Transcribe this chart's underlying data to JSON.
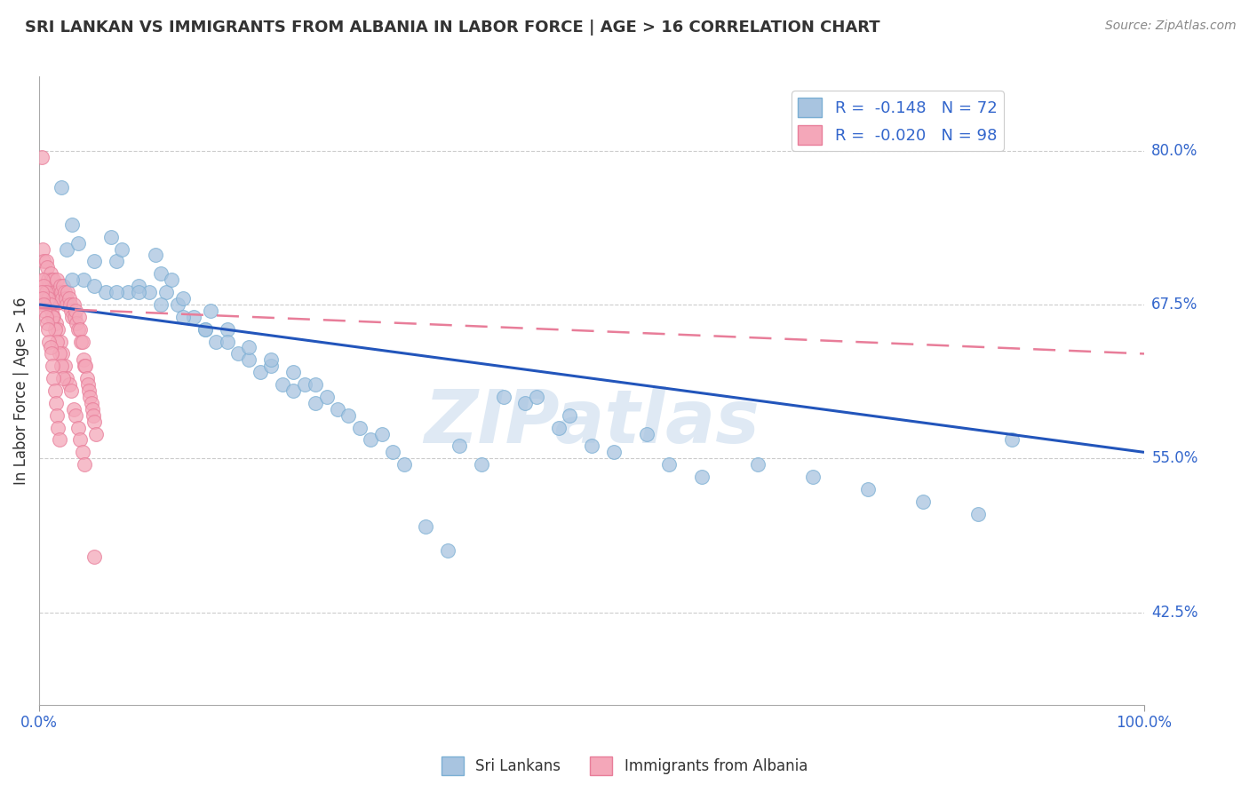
{
  "title": "SRI LANKAN VS IMMIGRANTS FROM ALBANIA IN LABOR FORCE | AGE > 16 CORRELATION CHART",
  "source": "Source: ZipAtlas.com",
  "xlabel_bottom_left": "0.0%",
  "xlabel_bottom_right": "100.0%",
  "ylabel": "In Labor Force | Age > 16",
  "ytick_labels": [
    "42.5%",
    "55.0%",
    "67.5%",
    "80.0%"
  ],
  "ytick_values": [
    0.425,
    0.55,
    0.675,
    0.8
  ],
  "xlim": [
    0.0,
    1.0
  ],
  "ylim": [
    0.35,
    0.86
  ],
  "sri_lankan_R": -0.148,
  "sri_lankan_N": 72,
  "albania_R": -0.02,
  "albania_N": 98,
  "sri_lankan_color": "#a8c4e0",
  "albania_color": "#f4a7b9",
  "sri_lankan_edge": "#7bafd4",
  "albania_edge": "#e87d99",
  "trend_blue_color": "#2255bb",
  "trend_pink_color": "#e87d99",
  "watermark": "ZIPatlas",
  "watermark_color": "#c8d8e8",
  "legend_box_blue": "#a8c4e0",
  "legend_box_pink": "#f4a7b9",
  "trend_blue_x0": 0.0,
  "trend_blue_y0": 0.675,
  "trend_blue_x1": 1.0,
  "trend_blue_y1": 0.555,
  "trend_pink_x0": 0.0,
  "trend_pink_y0": 0.672,
  "trend_pink_x1": 1.0,
  "trend_pink_y1": 0.635,
  "sri_lankans_x": [
    0.02,
    0.025,
    0.03,
    0.035,
    0.04,
    0.05,
    0.06,
    0.065,
    0.07,
    0.075,
    0.08,
    0.09,
    0.1,
    0.105,
    0.11,
    0.115,
    0.12,
    0.125,
    0.13,
    0.14,
    0.15,
    0.155,
    0.16,
    0.17,
    0.18,
    0.19,
    0.2,
    0.21,
    0.22,
    0.23,
    0.24,
    0.25,
    0.26,
    0.27,
    0.28,
    0.29,
    0.3,
    0.31,
    0.32,
    0.33,
    0.35,
    0.37,
    0.38,
    0.4,
    0.42,
    0.44,
    0.45,
    0.47,
    0.48,
    0.5,
    0.52,
    0.55,
    0.57,
    0.6,
    0.65,
    0.7,
    0.75,
    0.8,
    0.85,
    0.88,
    0.03,
    0.05,
    0.07,
    0.09,
    0.11,
    0.13,
    0.15,
    0.17,
    0.19,
    0.21,
    0.23,
    0.25
  ],
  "sri_lankans_y": [
    0.77,
    0.72,
    0.74,
    0.725,
    0.695,
    0.71,
    0.685,
    0.73,
    0.71,
    0.72,
    0.685,
    0.69,
    0.685,
    0.715,
    0.7,
    0.685,
    0.695,
    0.675,
    0.68,
    0.665,
    0.655,
    0.67,
    0.645,
    0.655,
    0.635,
    0.63,
    0.62,
    0.625,
    0.61,
    0.605,
    0.61,
    0.595,
    0.6,
    0.59,
    0.585,
    0.575,
    0.565,
    0.57,
    0.555,
    0.545,
    0.495,
    0.475,
    0.56,
    0.545,
    0.6,
    0.595,
    0.6,
    0.575,
    0.585,
    0.56,
    0.555,
    0.57,
    0.545,
    0.535,
    0.545,
    0.535,
    0.525,
    0.515,
    0.505,
    0.565,
    0.695,
    0.69,
    0.685,
    0.685,
    0.675,
    0.665,
    0.655,
    0.645,
    0.64,
    0.63,
    0.62,
    0.61
  ],
  "albania_x": [
    0.002,
    0.003,
    0.004,
    0.005,
    0.006,
    0.007,
    0.008,
    0.009,
    0.01,
    0.011,
    0.012,
    0.013,
    0.014,
    0.015,
    0.016,
    0.017,
    0.018,
    0.019,
    0.02,
    0.021,
    0.022,
    0.023,
    0.024,
    0.025,
    0.026,
    0.027,
    0.028,
    0.029,
    0.03,
    0.031,
    0.032,
    0.033,
    0.034,
    0.035,
    0.036,
    0.037,
    0.038,
    0.039,
    0.04,
    0.041,
    0.042,
    0.043,
    0.044,
    0.045,
    0.046,
    0.047,
    0.048,
    0.049,
    0.05,
    0.051,
    0.003,
    0.005,
    0.007,
    0.009,
    0.011,
    0.013,
    0.015,
    0.017,
    0.019,
    0.021,
    0.023,
    0.025,
    0.027,
    0.029,
    0.031,
    0.033,
    0.035,
    0.037,
    0.039,
    0.041,
    0.004,
    0.006,
    0.008,
    0.01,
    0.012,
    0.014,
    0.016,
    0.018,
    0.02,
    0.022,
    0.002,
    0.003,
    0.004,
    0.005,
    0.006,
    0.007,
    0.008,
    0.009,
    0.01,
    0.011,
    0.012,
    0.013,
    0.014,
    0.015,
    0.016,
    0.017,
    0.018,
    0.05
  ],
  "albania_y": [
    0.795,
    0.72,
    0.71,
    0.695,
    0.71,
    0.705,
    0.695,
    0.69,
    0.7,
    0.695,
    0.685,
    0.695,
    0.685,
    0.68,
    0.695,
    0.685,
    0.68,
    0.69,
    0.685,
    0.68,
    0.69,
    0.685,
    0.68,
    0.675,
    0.685,
    0.68,
    0.675,
    0.67,
    0.665,
    0.675,
    0.665,
    0.67,
    0.66,
    0.655,
    0.665,
    0.655,
    0.645,
    0.645,
    0.63,
    0.625,
    0.625,
    0.615,
    0.61,
    0.605,
    0.6,
    0.595,
    0.59,
    0.585,
    0.58,
    0.57,
    0.695,
    0.685,
    0.68,
    0.675,
    0.67,
    0.665,
    0.66,
    0.655,
    0.645,
    0.635,
    0.625,
    0.615,
    0.61,
    0.605,
    0.59,
    0.585,
    0.575,
    0.565,
    0.555,
    0.545,
    0.69,
    0.685,
    0.68,
    0.675,
    0.665,
    0.655,
    0.645,
    0.635,
    0.625,
    0.615,
    0.685,
    0.68,
    0.675,
    0.67,
    0.665,
    0.66,
    0.655,
    0.645,
    0.64,
    0.635,
    0.625,
    0.615,
    0.605,
    0.595,
    0.585,
    0.575,
    0.565,
    0.47
  ]
}
